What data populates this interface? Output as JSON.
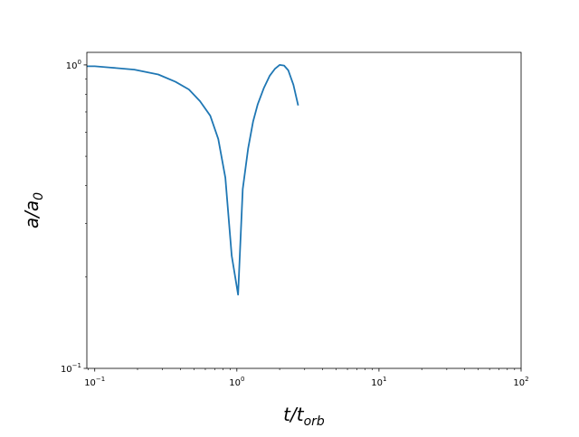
{
  "chart_data": {
    "type": "line",
    "title": "",
    "xscale": "log",
    "yscale": "log",
    "xlim": [
      0.088,
      100
    ],
    "ylim": [
      0.1,
      1.1
    ],
    "grid": false,
    "xlabel": {
      "base": "t/t",
      "sub": "orb"
    },
    "ylabel": {
      "base": "a/a",
      "sub": "0"
    },
    "x_major_ticks": [
      {
        "value": 0.1,
        "base": "10",
        "exp": "−1"
      },
      {
        "value": 1,
        "base": "10",
        "exp": "0"
      },
      {
        "value": 10,
        "base": "10",
        "exp": "1"
      },
      {
        "value": 100,
        "base": "10",
        "exp": "2"
      }
    ],
    "y_major_ticks": [
      {
        "value": 0.1,
        "base": "10",
        "exp": "−1"
      },
      {
        "value": 1,
        "base": "10",
        "exp": "0"
      }
    ],
    "series": [
      {
        "color": "#1f77b4",
        "x": [
          0.088,
          0.1,
          0.13,
          0.19,
          0.28,
          0.37,
          0.46,
          0.55,
          0.65,
          0.74,
          0.83,
          0.92,
          1.02,
          1.1,
          1.2,
          1.3,
          1.4,
          1.55,
          1.7,
          1.85,
          2.0,
          2.15,
          2.3,
          2.5,
          2.7
        ],
        "y": [
          0.99,
          0.99,
          0.98,
          0.965,
          0.93,
          0.88,
          0.83,
          0.76,
          0.68,
          0.57,
          0.425,
          0.235,
          0.175,
          0.39,
          0.53,
          0.65,
          0.74,
          0.84,
          0.92,
          0.97,
          1.0,
          0.995,
          0.96,
          0.86,
          0.735
        ]
      }
    ]
  }
}
